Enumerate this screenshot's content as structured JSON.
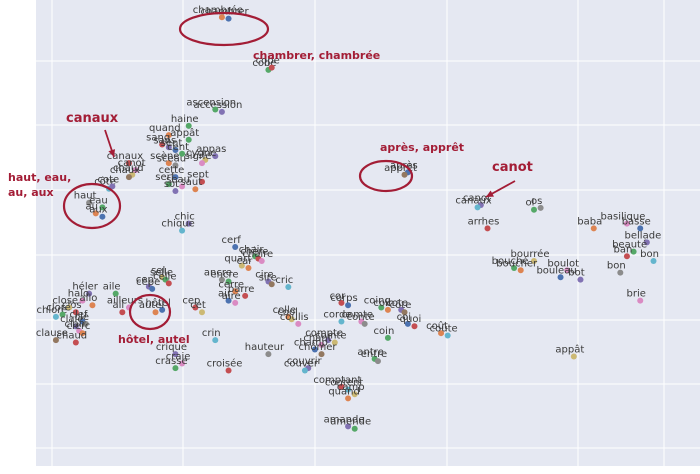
{
  "chart_data": {
    "type": "scatter",
    "xlim": [
      0,
      100
    ],
    "ylim": [
      0,
      100
    ],
    "grid": true,
    "palette": [
      "#4c72b0",
      "#dd8452",
      "#55a868",
      "#c44e52",
      "#8172b3",
      "#937860",
      "#da8bc3",
      "#8c8c8c",
      "#ccb974",
      "#64b5cd"
    ],
    "points": [
      {
        "label": "chambrer",
        "x": 29,
        "y": 96,
        "c": 0
      },
      {
        "label": "chambrée",
        "x": 28,
        "y": 96.3,
        "c": 1
      },
      {
        "label": "cobe",
        "x": 35,
        "y": 85,
        "c": 2
      },
      {
        "label": "cope",
        "x": 35.5,
        "y": 85.5,
        "c": 3
      },
      {
        "label": "accession",
        "x": 28,
        "y": 76,
        "c": 4
      },
      {
        "label": "ascension",
        "x": 27,
        "y": 76.5,
        "c": 2
      },
      {
        "label": "haine",
        "x": 23,
        "y": 73,
        "c": 2
      },
      {
        "label": "quand",
        "x": 20,
        "y": 71,
        "c": 1
      },
      {
        "label": "appât",
        "x": 23,
        "y": 70,
        "c": 2
      },
      {
        "label": "sang",
        "x": 19,
        "y": 69,
        "c": 3
      },
      {
        "label": "sans",
        "x": 20,
        "y": 68.4,
        "c": 4
      },
      {
        "label": "sent",
        "x": 21,
        "y": 67.8,
        "c": 0
      },
      {
        "label": "canaux",
        "x": 14,
        "y": 65,
        "c": 3
      },
      {
        "label": "canot",
        "x": 15,
        "y": 63.5,
        "c": 6
      },
      {
        "label": "chaud",
        "x": 14.5,
        "y": 62.5,
        "c": 8
      },
      {
        "label": "chaux",
        "x": 14,
        "y": 62,
        "c": 5
      },
      {
        "label": "scène",
        "x": 20,
        "y": 65,
        "c": 1
      },
      {
        "label": "sceau",
        "x": 21,
        "y": 64.5,
        "c": 7
      },
      {
        "label": "cent",
        "x": 22,
        "y": 67,
        "c": 2
      },
      {
        "label": "appas",
        "x": 27,
        "y": 66.5,
        "c": 4
      },
      {
        "label": "cygne",
        "x": 25.5,
        "y": 65.7,
        "c": 8
      },
      {
        "label": "signe",
        "x": 25,
        "y": 65,
        "c": 6
      },
      {
        "label": "cette",
        "x": 21,
        "y": 62,
        "c": 0
      },
      {
        "label": "sept",
        "x": 25,
        "y": 61,
        "c": 3
      },
      {
        "label": "serf",
        "x": 20,
        "y": 60.5,
        "c": 2
      },
      {
        "label": "seau",
        "x": 22,
        "y": 60,
        "c": 6
      },
      {
        "label": "saut",
        "x": 24,
        "y": 59.4,
        "c": 1
      },
      {
        "label": "sot",
        "x": 21,
        "y": 59,
        "c": 4
      },
      {
        "label": "côte",
        "x": 11,
        "y": 59.5,
        "c": 9
      },
      {
        "label": "cote",
        "x": 11.5,
        "y": 60,
        "c": 4
      },
      {
        "label": "haut",
        "x": 8,
        "y": 56.5,
        "c": 7
      },
      {
        "label": "eau",
        "x": 10,
        "y": 55.5,
        "c": 2
      },
      {
        "label": "au",
        "x": 9,
        "y": 54.2,
        "c": 1
      },
      {
        "label": "aux",
        "x": 10,
        "y": 53.5,
        "c": 0
      },
      {
        "label": "chic",
        "x": 23,
        "y": 52,
        "c": 4
      },
      {
        "label": "chique",
        "x": 22,
        "y": 50.5,
        "c": 9
      },
      {
        "label": "cerf",
        "x": 30,
        "y": 47,
        "c": 0
      },
      {
        "label": "chair",
        "x": 33,
        "y": 45,
        "c": 2
      },
      {
        "label": "chère",
        "x": 33.5,
        "y": 44.5,
        "c": 3
      },
      {
        "label": "chaire",
        "x": 34,
        "y": 44,
        "c": 6
      },
      {
        "label": "quart",
        "x": 31,
        "y": 43,
        "c": 8
      },
      {
        "label": "car",
        "x": 32,
        "y": 42.5,
        "c": 1
      },
      {
        "label": "ancre",
        "x": 28,
        "y": 40,
        "c": 7
      },
      {
        "label": "encre",
        "x": 29,
        "y": 39.6,
        "c": 2
      },
      {
        "label": "cire",
        "x": 35,
        "y": 39.6,
        "c": 4
      },
      {
        "label": "sire",
        "x": 35.5,
        "y": 39,
        "c": 5
      },
      {
        "label": "cric",
        "x": 38,
        "y": 38.4,
        "c": 9
      },
      {
        "label": "cerre",
        "x": 30,
        "y": 37.5,
        "c": 1
      },
      {
        "label": "barre",
        "x": 31.5,
        "y": 36.5,
        "c": 3
      },
      {
        "label": "air",
        "x": 29,
        "y": 35.5,
        "c": 0
      },
      {
        "label": "aire",
        "x": 30,
        "y": 35,
        "c": 6
      },
      {
        "label": "sel",
        "x": 19,
        "y": 40.5,
        "c": 8
      },
      {
        "label": "selle",
        "x": 19.5,
        "y": 40,
        "c": 2
      },
      {
        "label": "celle",
        "x": 20,
        "y": 39.2,
        "c": 3
      },
      {
        "label": "cep",
        "x": 17,
        "y": 38.5,
        "c": 4
      },
      {
        "label": "cèpe",
        "x": 17.5,
        "y": 38,
        "c": 0
      },
      {
        "label": "héler",
        "x": 8,
        "y": 37,
        "c": 4
      },
      {
        "label": "aile",
        "x": 12,
        "y": 37,
        "c": 2
      },
      {
        "label": "halo",
        "x": 7,
        "y": 35.5,
        "c": 6
      },
      {
        "label": "allo",
        "x": 8.5,
        "y": 34.5,
        "c": 1
      },
      {
        "label": "clos",
        "x": 6,
        "y": 33,
        "c": 3
      },
      {
        "label": "close",
        "x": 5,
        "y": 34,
        "c": 8
      },
      {
        "label": "chlore",
        "x": 3,
        "y": 32,
        "c": 9
      },
      {
        "label": "clore",
        "x": 4,
        "y": 32.5,
        "c": 2
      },
      {
        "label": "clef",
        "x": 7,
        "y": 31,
        "c": 0
      },
      {
        "label": "clé",
        "x": 7.5,
        "y": 30.5,
        "c": 7
      },
      {
        "label": "claie",
        "x": 6,
        "y": 30,
        "c": 4
      },
      {
        "label": "clair",
        "x": 6.5,
        "y": 29,
        "c": 6
      },
      {
        "label": "clerc",
        "x": 7,
        "y": 28.5,
        "c": 1
      },
      {
        "label": "clause",
        "x": 3,
        "y": 27,
        "c": 5
      },
      {
        "label": "chaud",
        "x": 6,
        "y": 26.5,
        "c": 3
      },
      {
        "label": "ailleurs",
        "x": 14,
        "y": 34,
        "c": 6
      },
      {
        "label": "ail",
        "x": 13,
        "y": 33,
        "c": 3
      },
      {
        "label": "hôtel",
        "x": 19,
        "y": 33.5,
        "c": 0
      },
      {
        "label": "autel",
        "x": 18,
        "y": 33,
        "c": 1
      },
      {
        "label": "cep",
        "x": 24,
        "y": 34,
        "c": 3
      },
      {
        "label": "cet",
        "x": 25,
        "y": 33,
        "c": 8
      },
      {
        "label": "crin",
        "x": 27,
        "y": 27,
        "c": 9
      },
      {
        "label": "crique",
        "x": 21,
        "y": 24,
        "c": 4
      },
      {
        "label": "craie",
        "x": 22,
        "y": 22,
        "c": 6
      },
      {
        "label": "crasse",
        "x": 21,
        "y": 21,
        "c": 2
      },
      {
        "label": "croisée",
        "x": 29,
        "y": 20.5,
        "c": 3
      },
      {
        "label": "hauteur",
        "x": 35,
        "y": 24,
        "c": 7
      },
      {
        "label": "couvrir",
        "x": 41,
        "y": 21,
        "c": 4
      },
      {
        "label": "couver",
        "x": 40.5,
        "y": 20.5,
        "c": 9
      },
      {
        "label": "colle",
        "x": 38,
        "y": 32,
        "c": 1
      },
      {
        "label": "cool",
        "x": 38.5,
        "y": 31.5,
        "c": 8
      },
      {
        "label": "coulis",
        "x": 39.5,
        "y": 30.5,
        "c": 6
      },
      {
        "label": "cor",
        "x": 46,
        "y": 35,
        "c": 3
      },
      {
        "label": "corps",
        "x": 47,
        "y": 34.5,
        "c": 0
      },
      {
        "label": "coing",
        "x": 52,
        "y": 34,
        "c": 2
      },
      {
        "label": "coin",
        "x": 53,
        "y": 33.5,
        "c": 1
      },
      {
        "label": "cote",
        "x": 55,
        "y": 33.5,
        "c": 4
      },
      {
        "label": "côte",
        "x": 55.5,
        "y": 33,
        "c": 5
      },
      {
        "label": "corde",
        "x": 46,
        "y": 31,
        "c": 9
      },
      {
        "label": "comte",
        "x": 49,
        "y": 31,
        "c": 6
      },
      {
        "label": "conte",
        "x": 49.5,
        "y": 30.5,
        "c": 7
      },
      {
        "label": "coi",
        "x": 56,
        "y": 30.5,
        "c": 0
      },
      {
        "label": "quoi",
        "x": 57,
        "y": 30,
        "c": 3
      },
      {
        "label": "coût",
        "x": 61,
        "y": 28.5,
        "c": 1
      },
      {
        "label": "coûte",
        "x": 62,
        "y": 28,
        "c": 9
      },
      {
        "label": "coin",
        "x": 53,
        "y": 27.5,
        "c": 2
      },
      {
        "label": "compte",
        "x": 44,
        "y": 27,
        "c": 4
      },
      {
        "label": "comte",
        "x": 45,
        "y": 26.5,
        "c": 8
      },
      {
        "label": "chant",
        "x": 43,
        "y": 26,
        "c": 6
      },
      {
        "label": "champ",
        "x": 42,
        "y": 25,
        "c": 0
      },
      {
        "label": "chômer",
        "x": 43,
        "y": 24,
        "c": 5
      },
      {
        "label": "antre",
        "x": 51,
        "y": 23,
        "c": 2
      },
      {
        "label": "entre",
        "x": 51.5,
        "y": 22.5,
        "c": 7
      },
      {
        "label": "comptant",
        "x": 46,
        "y": 17,
        "c": 3
      },
      {
        "label": "content",
        "x": 47,
        "y": 16.4,
        "c": 9
      },
      {
        "label": "camp",
        "x": 48,
        "y": 15.4,
        "c": 8
      },
      {
        "label": "quand",
        "x": 47,
        "y": 14.5,
        "c": 1
      },
      {
        "label": "amande",
        "x": 47,
        "y": 8.5,
        "c": 4
      },
      {
        "label": "amende",
        "x": 48,
        "y": 8,
        "c": 2
      },
      {
        "label": "après",
        "x": 56,
        "y": 63,
        "c": 0
      },
      {
        "label": "apprêt",
        "x": 55.5,
        "y": 62.5,
        "c": 5
      },
      {
        "label": "canot",
        "x": 67,
        "y": 56,
        "c": 4
      },
      {
        "label": "canaux",
        "x": 66.5,
        "y": 55.5,
        "c": 9
      },
      {
        "label": "arrhes",
        "x": 68,
        "y": 51,
        "c": 3
      },
      {
        "label": "ol",
        "x": 75,
        "y": 55,
        "c": 2
      },
      {
        "label": "os",
        "x": 76,
        "y": 55.4,
        "c": 7
      },
      {
        "label": "baba",
        "x": 84,
        "y": 51,
        "c": 1
      },
      {
        "label": "basilique",
        "x": 89,
        "y": 52,
        "c": 6
      },
      {
        "label": "basse",
        "x": 91,
        "y": 51,
        "c": 0
      },
      {
        "label": "bellade",
        "x": 92,
        "y": 48,
        "c": 4
      },
      {
        "label": "beauté",
        "x": 90,
        "y": 46,
        "c": 2
      },
      {
        "label": "ban",
        "x": 89,
        "y": 45,
        "c": 3
      },
      {
        "label": "bon",
        "x": 93,
        "y": 44,
        "c": 9
      },
      {
        "label": "bourrée",
        "x": 75,
        "y": 44,
        "c": 8
      },
      {
        "label": "bouché",
        "x": 72,
        "y": 42.5,
        "c": 2
      },
      {
        "label": "boucher",
        "x": 73,
        "y": 42,
        "c": 1
      },
      {
        "label": "boulot",
        "x": 80,
        "y": 42,
        "c": 6
      },
      {
        "label": "bouleau",
        "x": 79,
        "y": 40.5,
        "c": 0
      },
      {
        "label": "bot",
        "x": 82,
        "y": 40,
        "c": 4
      },
      {
        "label": "bon",
        "x": 88,
        "y": 41.5,
        "c": 7
      },
      {
        "label": "brie",
        "x": 91,
        "y": 35.5,
        "c": 6
      },
      {
        "label": "appât",
        "x": 81,
        "y": 23.5,
        "c": 8
      }
    ],
    "annotations": [
      {
        "text": "chambrer, chambrée"
      },
      {
        "text": "canaux"
      },
      {
        "text": "haut, eau,"
      },
      {
        "text": "au, aux"
      },
      {
        "text": "après, apprêt"
      },
      {
        "text": "canot"
      },
      {
        "text": "hôtel, autel"
      }
    ]
  }
}
